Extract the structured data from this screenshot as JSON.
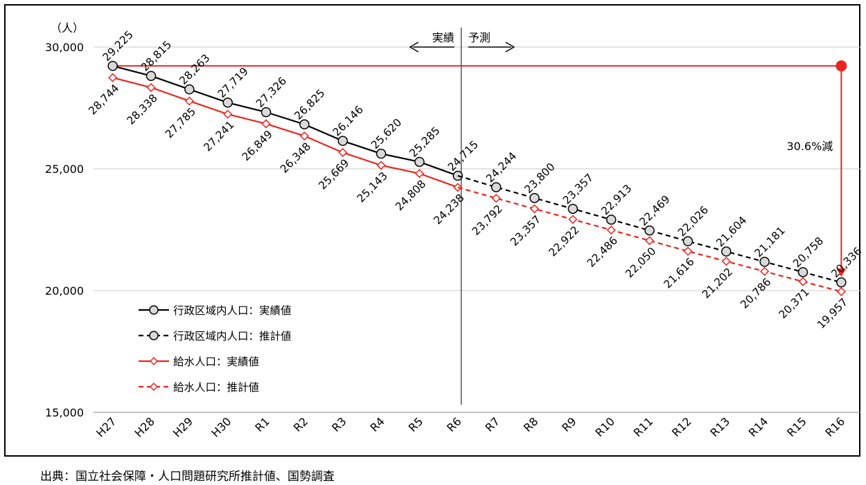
{
  "chart_data": {
    "type": "line",
    "y_unit_label": "（人）",
    "categories": [
      "H27",
      "H28",
      "H29",
      "H30",
      "R1",
      "R2",
      "R3",
      "R4",
      "R5",
      "R6",
      "R7",
      "R8",
      "R9",
      "R10",
      "R11",
      "R12",
      "R13",
      "R14",
      "R15",
      "R16"
    ],
    "ylim": [
      15000,
      30000
    ],
    "yticks": [
      "15,000",
      "20,000",
      "25,000",
      "30,000"
    ],
    "grid": true,
    "actual_label": "実績",
    "forecast_label": "予測",
    "reduction_label": "30.6%減",
    "series": [
      {
        "name": "行政区域内人口：実績値",
        "color": "#000000",
        "values": [
          29225,
          28815,
          28263,
          27719,
          27326,
          26825,
          26146,
          25620,
          25285,
          24715,
          null,
          null,
          null,
          null,
          null,
          null,
          null,
          null,
          null,
          null
        ],
        "labels": [
          "29,225",
          "28,815",
          "28,263",
          "27,719",
          "27,326",
          "26,825",
          "26,146",
          "25,620",
          "25,285",
          "24,715",
          "",
          "",
          "",
          "",
          "",
          "",
          "",
          "",
          "",
          ""
        ]
      },
      {
        "name": "行政区域内人口：推計値",
        "color": "#000000",
        "values": [
          null,
          null,
          null,
          null,
          null,
          null,
          null,
          null,
          null,
          24715,
          24244,
          23800,
          23357,
          22913,
          22469,
          22026,
          21604,
          21181,
          20758,
          20336
        ],
        "labels": [
          "",
          "",
          "",
          "",
          "",
          "",
          "",
          "",
          "",
          "",
          "24,244",
          "23,800",
          "23,357",
          "22,913",
          "22,469",
          "22,026",
          "21,604",
          "21,181",
          "20,758",
          "20,336"
        ]
      },
      {
        "name": "給水人口：実績値",
        "color": "#e8251f",
        "values": [
          28744,
          28338,
          27785,
          27241,
          26849,
          26348,
          25669,
          25143,
          24808,
          24238,
          null,
          null,
          null,
          null,
          null,
          null,
          null,
          null,
          null,
          null
        ],
        "labels": [
          "28,744",
          "28,338",
          "27,785",
          "27,241",
          "26,849",
          "26,348",
          "25,669",
          "25,143",
          "24,808",
          "24,238",
          "",
          "",
          "",
          "",
          "",
          "",
          "",
          "",
          "",
          ""
        ]
      },
      {
        "name": "給水人口：推計値",
        "color": "#e8251f",
        "values": [
          null,
          null,
          null,
          null,
          null,
          null,
          null,
          null,
          null,
          24238,
          23792,
          23357,
          22922,
          22486,
          22050,
          21616,
          21202,
          20786,
          20371,
          19957
        ],
        "labels": [
          "",
          "",
          "",
          "",
          "",
          "",
          "",
          "",
          "",
          "",
          "23,792",
          "23,357",
          "22,922",
          "22,486",
          "22,050",
          "21,616",
          "21,202",
          "20,786",
          "20,371",
          "19,957"
        ]
      }
    ]
  },
  "source": "出典：国立社会保障・人口問題研究所推計値、国勢調査"
}
